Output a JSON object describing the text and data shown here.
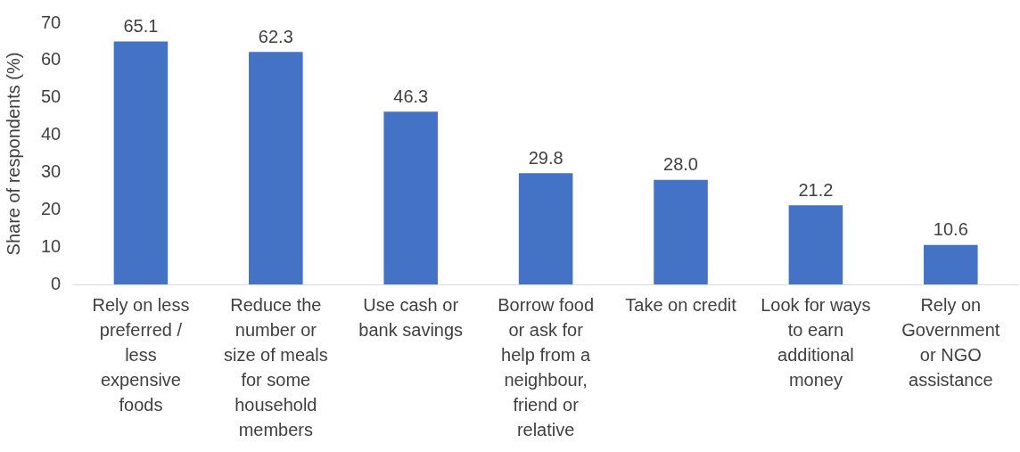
{
  "chart_data": {
    "type": "bar",
    "ylabel": "Share of respondents (%)",
    "categories": [
      "Rely on less preferred / less expensive foods",
      "Reduce the number or size of meals for some household members",
      "Use cash or bank savings",
      "Borrow food or ask for help from a neighbour, friend or relative",
      "Take on credit",
      "Look for ways to earn additional money",
      "Rely on Government or NGO assistance"
    ],
    "values": [
      65.1,
      62.3,
      46.3,
      29.8,
      28.0,
      21.2,
      10.6
    ],
    "color": "#4472c4",
    "value_labels": [
      "65.1",
      "62.3",
      "46.3",
      "29.8",
      "28.0",
      "21.2",
      "10.6"
    ],
    "ylim": [
      0,
      70
    ],
    "yticks": [
      0,
      10,
      20,
      30,
      40,
      50,
      60,
      70
    ],
    "grid": false,
    "legend": false
  }
}
